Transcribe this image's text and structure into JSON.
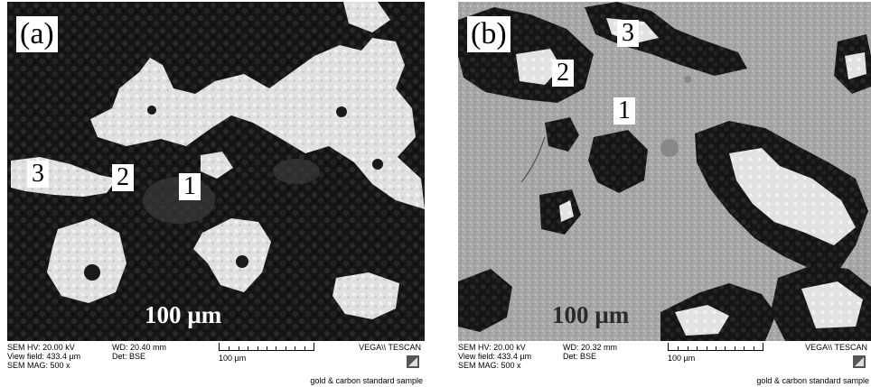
{
  "panels": [
    {
      "label": "(a)",
      "regions": [
        "1",
        "2",
        "3"
      ],
      "scale_text": "100 µm",
      "footer": {
        "hv": "SEM HV: 20.00 kV",
        "view_field": "View field: 433.4 µm",
        "mag": "SEM MAG: 500 x",
        "wd": "WD: 20.40 mm",
        "det": "Det: BSE",
        "scalebar_label": "100 µm",
        "brand": "VEGA\\\\ TESCAN",
        "sample": "gold & carbon standard sample"
      }
    },
    {
      "label": "(b)",
      "regions": [
        "1",
        "2",
        "3"
      ],
      "scale_text": "100 µm",
      "footer": {
        "hv": "SEM HV: 20.00 kV",
        "view_field": "View field: 433.4 µm",
        "mag": "SEM MAG: 500 x",
        "wd": "WD: 20.32 mm",
        "det": "Det: BSE",
        "scalebar_label": "100 µm",
        "brand": "VEGA\\\\ TESCAN",
        "sample": "gold & carbon standard sample"
      }
    }
  ],
  "colors": {
    "dark_phase": "#161616",
    "bright_phase": "#e4e4e4",
    "gray_matrix": "#a9a9a9"
  }
}
